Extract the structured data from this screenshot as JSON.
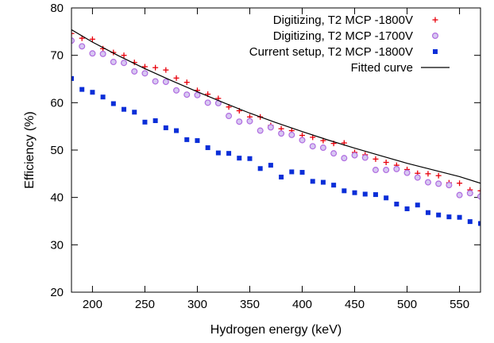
{
  "chart_data": {
    "type": "scatter",
    "xlabel": "Hydrogen energy (keV)",
    "ylabel": "Efficiency (%)",
    "xlim": [
      180,
      570
    ],
    "ylim": [
      20,
      80
    ],
    "xticks": [
      200,
      250,
      300,
      350,
      400,
      450,
      500,
      550
    ],
    "yticks": [
      20,
      30,
      40,
      50,
      60,
      70,
      80
    ],
    "xtick_labels": [
      "200",
      "250",
      "300",
      "350",
      "400",
      "450",
      "500",
      "550"
    ],
    "ytick_labels": [
      "20",
      "30",
      "40",
      "50",
      "60",
      "70",
      "80"
    ],
    "grid": false,
    "legend_position": "top-right",
    "series": [
      {
        "name": "Digitizing, T2 MCP -1800V",
        "marker": "plus",
        "color": "#e8000b",
        "x": [
          180,
          190,
          200,
          210,
          220,
          230,
          240,
          250,
          260,
          270,
          280,
          290,
          300,
          310,
          320,
          330,
          340,
          350,
          360,
          370,
          380,
          390,
          400,
          410,
          420,
          430,
          440,
          450,
          460,
          470,
          480,
          490,
          500,
          510,
          520,
          530,
          540,
          550,
          560,
          570
        ],
        "y": [
          74.6,
          73.6,
          73.4,
          71.4,
          70.6,
          70.0,
          68.5,
          67.6,
          67.4,
          66.9,
          65.2,
          64.3,
          62.6,
          61.8,
          60.9,
          59.1,
          58.3,
          57.0,
          57.0,
          55.2,
          54.5,
          54.1,
          53.1,
          52.7,
          52.0,
          51.4,
          51.5,
          49.5,
          49.0,
          48.1,
          47.4,
          46.8,
          45.9,
          45.1,
          45.0,
          44.6,
          43.1,
          43.0,
          41.6,
          41.4
        ]
      },
      {
        "name": "Digitizing, T2 MCP -1700V",
        "marker": "circle",
        "color": "#b06be0",
        "x": [
          180,
          190,
          200,
          210,
          220,
          230,
          240,
          250,
          260,
          270,
          280,
          290,
          300,
          310,
          320,
          330,
          340,
          350,
          360,
          370,
          380,
          390,
          400,
          410,
          420,
          430,
          440,
          450,
          460,
          470,
          480,
          490,
          500,
          510,
          520,
          530,
          540,
          550,
          560,
          570
        ],
        "y": [
          73.1,
          71.9,
          70.4,
          70.3,
          68.6,
          68.4,
          66.6,
          66.2,
          64.5,
          64.4,
          62.6,
          61.7,
          61.6,
          60.0,
          59.9,
          57.2,
          56.0,
          56.1,
          54.1,
          54.8,
          53.5,
          53.2,
          52.1,
          50.8,
          50.5,
          49.3,
          48.3,
          48.9,
          48.4,
          45.8,
          45.8,
          46.0,
          45.2,
          44.2,
          43.2,
          42.9,
          42.6,
          40.5,
          40.9,
          40.2
        ]
      },
      {
        "name": "Current setup, T2 MCP -1800V",
        "marker": "square",
        "color": "#0a2ed8",
        "x": [
          180,
          190,
          200,
          210,
          220,
          230,
          240,
          250,
          260,
          270,
          280,
          290,
          300,
          310,
          320,
          330,
          340,
          350,
          360,
          370,
          380,
          390,
          400,
          410,
          420,
          430,
          440,
          450,
          460,
          470,
          480,
          490,
          500,
          510,
          520,
          530,
          540,
          550,
          560,
          570
        ],
        "y": [
          65.1,
          62.8,
          62.2,
          61.2,
          59.8,
          58.6,
          58.0,
          55.9,
          56.2,
          54.7,
          54.1,
          52.2,
          52.0,
          50.5,
          49.4,
          49.3,
          48.3,
          48.2,
          46.1,
          46.8,
          44.3,
          45.4,
          45.3,
          43.4,
          43.2,
          42.6,
          41.4,
          41.0,
          40.7,
          40.6,
          39.9,
          38.6,
          37.6,
          38.4,
          36.8,
          36.3,
          35.9,
          35.8,
          34.9,
          34.5
        ]
      },
      {
        "name": "Fitted curve",
        "marker": "line",
        "color": "#000000",
        "x": [
          180,
          200,
          225,
          250,
          275,
          300,
          325,
          350,
          375,
          400,
          425,
          450,
          475,
          500,
          525,
          550,
          570
        ],
        "y": [
          75.4,
          72.8,
          69.9,
          67.2,
          64.7,
          62.3,
          60.0,
          57.8,
          55.8,
          53.9,
          52.1,
          50.4,
          48.8,
          47.2,
          45.8,
          44.4,
          43.0
        ]
      }
    ]
  }
}
